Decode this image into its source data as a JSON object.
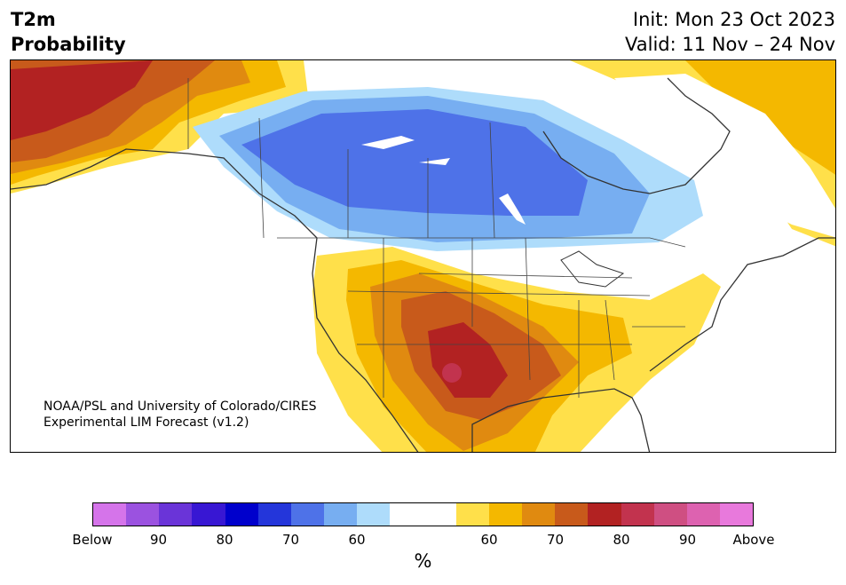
{
  "header": {
    "title_line1": "T2m",
    "title_line2": "Probability",
    "init": "Init: Mon 23 Oct 2023",
    "valid": "Valid: 11 Nov – 24 Nov"
  },
  "credit": {
    "line1": "NOAA/PSL and University of Colorado/CIRES",
    "line2": "Experimental LIM Forecast (v1.2)"
  },
  "colorbar": {
    "unit": "%",
    "colors": [
      "#d574ea",
      "#9b52e0",
      "#6a34d8",
      "#3817d3",
      "#0000cc",
      "#2436da",
      "#4e72e8",
      "#77aef1",
      "#aedcfb",
      "#ffffff",
      "#ffffff",
      "#ffe04a",
      "#f4b800",
      "#e08a10",
      "#c85a1b",
      "#b22222",
      "#c2334e",
      "#cf4f82",
      "#dd62b0",
      "#e879dc"
    ],
    "ticks": [
      "Below",
      "90",
      "80",
      "70",
      "60",
      "60",
      "70",
      "80",
      "90",
      "Above"
    ]
  },
  "map": {
    "region": "North America",
    "legend_below_colors": [
      "#aedcfb",
      "#77aef1",
      "#4e72e8"
    ],
    "legend_above_colors": [
      "#ffe04a",
      "#f4b800",
      "#e08a10",
      "#c85a1b",
      "#b22222",
      "#c2334e"
    ]
  }
}
